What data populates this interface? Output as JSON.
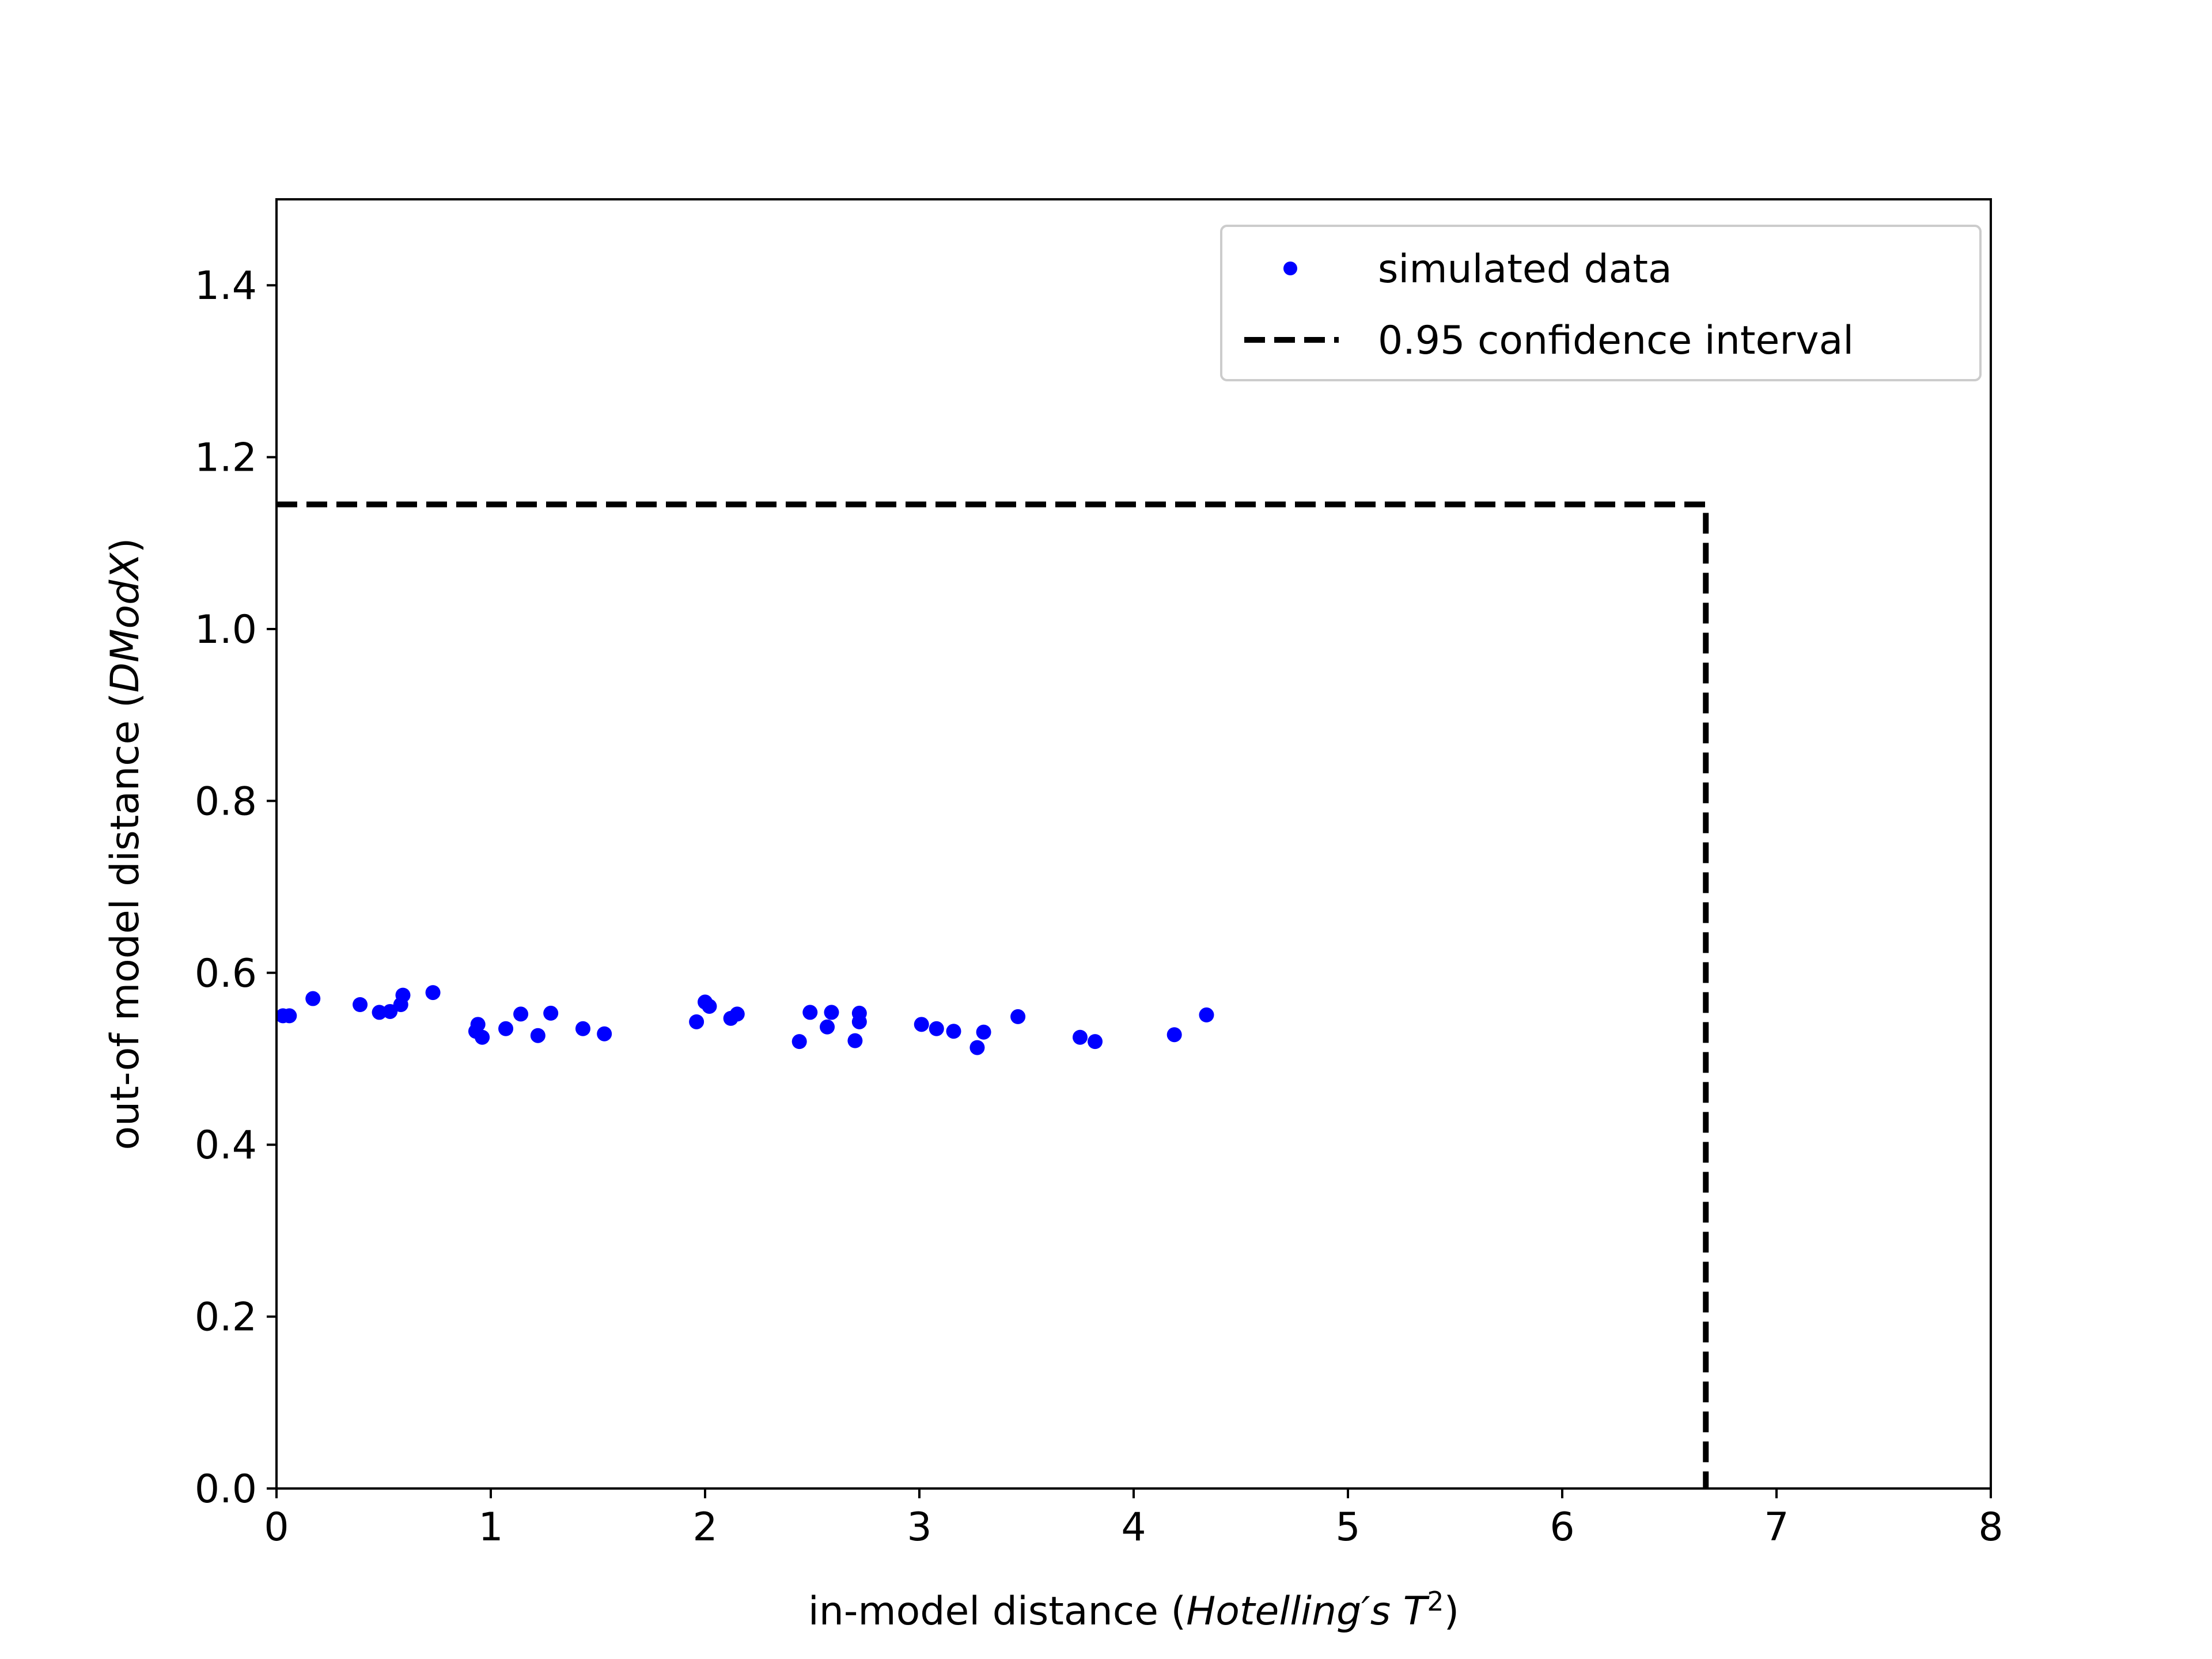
{
  "chart_data": {
    "type": "scatter",
    "xlabel": {
      "prefix": "in-model distance (",
      "italic": "Hotelling′s T",
      "sup": "2",
      "suffix": ")"
    },
    "ylabel": {
      "prefix": "out-of model distance (",
      "italic": "DModX",
      "suffix": ")"
    },
    "xlim": [
      0,
      8
    ],
    "ylim": [
      0,
      1.5
    ],
    "xticks": [
      0,
      1,
      2,
      3,
      4,
      5,
      6,
      7,
      8
    ],
    "yticks": [
      0.0,
      0.2,
      0.4,
      0.6,
      0.8,
      1.0,
      1.2,
      1.4
    ],
    "xtick_labels": [
      "0",
      "1",
      "2",
      "3",
      "4",
      "5",
      "6",
      "7",
      "8"
    ],
    "ytick_labels": [
      "0.0",
      "0.2",
      "0.4",
      "0.6",
      "0.8",
      "1.0",
      "1.2",
      "1.4"
    ],
    "grid": false,
    "legend_position": "top-right",
    "series": [
      {
        "name": "simulated data",
        "kind": "scatter",
        "color": "#0000ff",
        "x": [
          0.03,
          0.06,
          0.17,
          0.39,
          0.48,
          0.53,
          0.58,
          0.59,
          0.73,
          0.93,
          0.94,
          0.96,
          1.07,
          1.14,
          1.22,
          1.28,
          1.43,
          1.53,
          1.96,
          2.0,
          2.02,
          2.12,
          2.15,
          2.44,
          2.49,
          2.57,
          2.59,
          2.7,
          2.72,
          2.72,
          3.01,
          3.08,
          3.16,
          3.27,
          3.3,
          3.46,
          3.75,
          3.82,
          4.19,
          4.34
        ],
        "y": [
          0.55,
          0.55,
          0.57,
          0.563,
          0.554,
          0.555,
          0.563,
          0.574,
          0.577,
          0.532,
          0.54,
          0.525,
          0.535,
          0.552,
          0.527,
          0.553,
          0.535,
          0.529,
          0.543,
          0.566,
          0.561,
          0.547,
          0.552,
          0.52,
          0.554,
          0.537,
          0.554,
          0.521,
          0.543,
          0.553,
          0.54,
          0.535,
          0.532,
          0.513,
          0.531,
          0.549,
          0.525,
          0.52,
          0.528,
          0.551
        ]
      },
      {
        "name": "0.95 confidence interval",
        "kind": "line",
        "style": "dashed",
        "color": "#000000",
        "x": [
          0,
          6.67,
          6.67
        ],
        "y": [
          1.145,
          1.145,
          0
        ]
      }
    ]
  }
}
